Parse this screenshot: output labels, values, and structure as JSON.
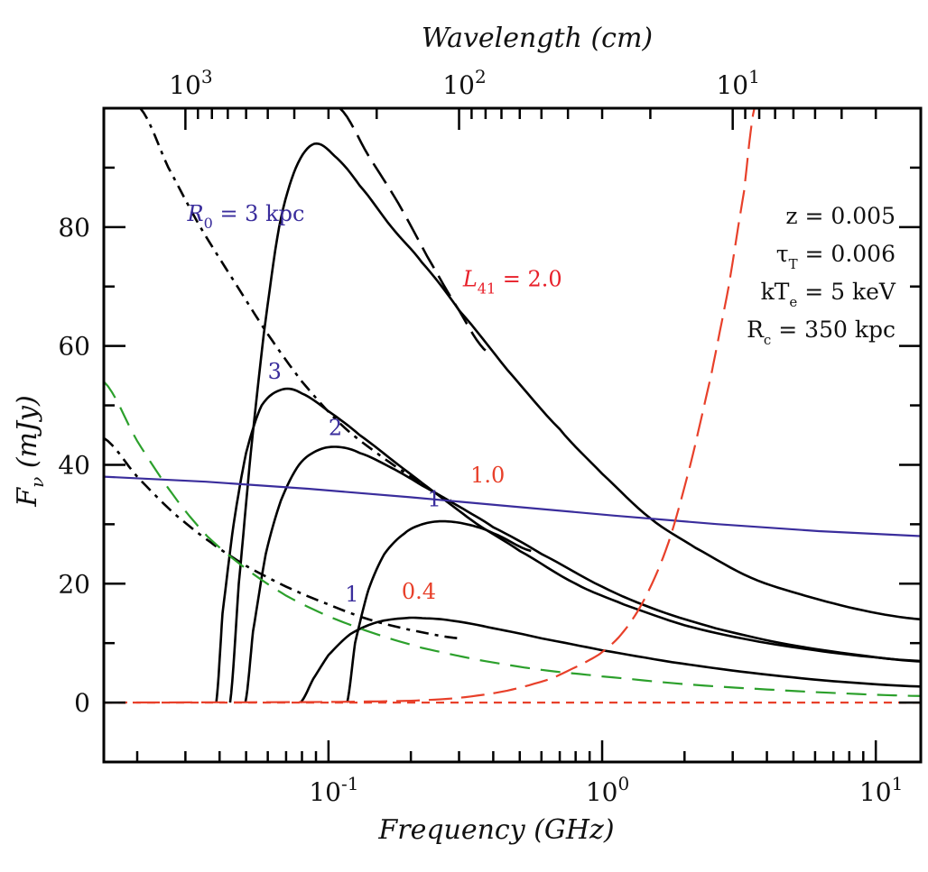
{
  "chart_data": {
    "type": "line",
    "title": "",
    "xlabel": "Frequency (GHz)",
    "ylabel": "F_ν (mJy)",
    "top_xlabel": "Wavelength (cm)",
    "xscale": "log",
    "xlim": [
      0.0151,
      14.6
    ],
    "ylim": [
      -10,
      100
    ],
    "grid": false,
    "x_ticks": [
      {
        "value": 0.1,
        "base": "10",
        "exp": "-1"
      },
      {
        "value": 1,
        "base": "10",
        "exp": "0"
      },
      {
        "value": 10,
        "base": "10",
        "exp": "1"
      }
    ],
    "top_ticks": [
      {
        "wavelength_cm": 1000,
        "base": "10",
        "exp": "3"
      },
      {
        "wavelength_cm": 100,
        "base": "10",
        "exp": "2"
      },
      {
        "wavelength_cm": 10,
        "base": "10",
        "exp": "1"
      }
    ],
    "y_ticks": [
      0,
      20,
      40,
      60,
      80
    ],
    "series": [
      {
        "name": "L41=2.0, R0=3 kpc",
        "color": "#000000",
        "style": "solid",
        "x": [
          0.0437,
          0.047,
          0.052,
          0.058,
          0.066,
          0.076,
          0.0886,
          0.105,
          0.13,
          0.17,
          0.22,
          0.3,
          0.45,
          0.7,
          1.0,
          1.5,
          2.2,
          3.5,
          5.5,
          9,
          14.6
        ],
        "y": [
          0,
          20,
          42,
          62,
          80,
          90,
          94,
          92,
          87,
          80,
          74,
          66,
          56,
          46,
          38.5,
          31,
          26,
          21,
          18,
          15.5,
          14
        ]
      },
      {
        "name": "L41=2.0 asymptote",
        "color": "#000000",
        "style": "longdash",
        "x": [
          0.11,
          0.14,
          0.18,
          0.23,
          0.3,
          0.38
        ],
        "y": [
          100,
          92,
          84,
          75,
          66,
          59
        ]
      },
      {
        "name": "L41=1.0 asymptote",
        "color": "#000000",
        "style": "dashdot",
        "x": [
          0.0205,
          0.026,
          0.034,
          0.045,
          0.06,
          0.08,
          0.11,
          0.15,
          0.2,
          0.28
        ],
        "y": [
          100,
          90,
          80,
          71,
          62,
          54,
          47,
          42,
          38,
          34
        ]
      },
      {
        "name": "L41=1.0, R0=3",
        "color": "#000000",
        "style": "solid",
        "x": [
          0.0389,
          0.041,
          0.045,
          0.05,
          0.057,
          0.068,
          0.08,
          0.1,
          0.13,
          0.18,
          0.25,
          0.35,
          0.5,
          0.8,
          1.2,
          2,
          3.5,
          6,
          10,
          14.6
        ],
        "y": [
          0,
          15,
          30,
          42,
          50,
          52.7,
          52,
          49,
          45,
          40,
          35,
          30,
          25.5,
          20,
          16.5,
          13,
          10.5,
          8.8,
          7.6,
          7
        ]
      },
      {
        "name": "L41=1.0, R0=2",
        "color": "#000000",
        "style": "solid",
        "x": [
          0.0497,
          0.053,
          0.059,
          0.067,
          0.078,
          0.092,
          0.109,
          0.13,
          0.17,
          0.22,
          0.3,
          0.4,
          0.6,
          1.0,
          1.6,
          2.6,
          4.5,
          8,
          14.6
        ],
        "y": [
          0,
          12,
          25,
          34,
          40,
          42.5,
          43,
          42,
          39.5,
          36.5,
          33,
          29.5,
          25,
          19.5,
          15.5,
          12.5,
          10,
          8.2,
          6.9
        ]
      },
      {
        "name": "L41=1.0, R0=1",
        "color": "#000000",
        "style": "solid",
        "x": [
          0.117,
          0.125,
          0.14,
          0.16,
          0.19,
          0.22,
          0.26,
          0.32,
          0.4,
          0.55
        ],
        "y": [
          0,
          10,
          19,
          25,
          28.5,
          30,
          30.5,
          30,
          28.5,
          25.5
        ]
      },
      {
        "name": "L41=0.4 asymptote",
        "color": "#000000",
        "style": "dashdot",
        "x": [
          0.0151,
          0.02,
          0.027,
          0.037,
          0.05,
          0.07,
          0.1,
          0.14,
          0.2,
          0.3
        ],
        "y": [
          44.5,
          38,
          32,
          27,
          23,
          19.5,
          16.5,
          14,
          12.2,
          10.8
        ]
      },
      {
        "name": "L41=0.4, R0=1",
        "color": "#000000",
        "style": "solid",
        "x": [
          0.079,
          0.088,
          0.1,
          0.12,
          0.15,
          0.19,
          0.22,
          0.28,
          0.4,
          0.6,
          1.0,
          1.8,
          3.5,
          7,
          14.6
        ],
        "y": [
          0,
          4,
          8,
          11.5,
          13.5,
          14.2,
          14.2,
          13.8,
          12.5,
          10.8,
          8.8,
          6.8,
          5,
          3.6,
          2.7
        ]
      },
      {
        "name": "blue reference",
        "color": "#3a2d9c",
        "style": "solid",
        "x": [
          0.0151,
          14.6
        ],
        "y": [
          38,
          28
        ]
      },
      {
        "name": "green dashed",
        "color": "#2ca02c",
        "style": "dashed",
        "x": [
          0.0151,
          0.02,
          0.027,
          0.036,
          0.05,
          0.07,
          0.1,
          0.15,
          0.22,
          0.35,
          0.6,
          1.0,
          2,
          4,
          8,
          14.6
        ],
        "y": [
          54,
          44,
          35,
          28,
          22.5,
          18,
          14.5,
          11.5,
          9.2,
          7.2,
          5.5,
          4.4,
          3.1,
          2.2,
          1.5,
          1.1
        ]
      },
      {
        "name": "red rising",
        "color": "#e8402a",
        "style": "longdash",
        "x": [
          0.0151,
          0.1,
          0.2,
          0.3,
          0.45,
          0.65,
          0.85,
          1.0,
          1.2,
          1.45,
          1.75,
          2.1,
          2.5,
          2.9,
          3.3,
          3.6
        ],
        "y": [
          0,
          0.1,
          0.3,
          0.8,
          2,
          4,
          6.5,
          8.5,
          12,
          18,
          27,
          40,
          55,
          70,
          86,
          100
        ]
      },
      {
        "name": "red zero",
        "color": "#e8402a",
        "style": "shortdash",
        "x": [
          0.0151,
          14.6
        ],
        "y": [
          0,
          0
        ]
      }
    ],
    "annotations": [
      {
        "id": "r0",
        "text": "R₀ =   3 kpc",
        "color": "#3a2d9c",
        "x": 0.0305,
        "y": 81
      },
      {
        "id": "l41",
        "text": "L₄₁ = 2.0",
        "color": "#e8202a",
        "x": 0.31,
        "y": 70
      },
      {
        "id": "l10",
        "text": "1.0",
        "color": "#e8402a",
        "x": 0.33,
        "y": 37
      },
      {
        "id": "l04",
        "text": "0.4",
        "color": "#e8402a",
        "x": 0.185,
        "y": 17.5
      },
      {
        "id": "r3",
        "text": "3",
        "color": "#3a2d9c",
        "x": 0.06,
        "y": 54.5
      },
      {
        "id": "r2",
        "text": "2",
        "color": "#3a2d9c",
        "x": 0.1,
        "y": 45
      },
      {
        "id": "r1a",
        "text": "1",
        "color": "#3a2d9c",
        "x": 0.23,
        "y": 33
      },
      {
        "id": "r1b",
        "text": "1",
        "color": "#3a2d9c",
        "x": 0.115,
        "y": 17
      }
    ],
    "params": [
      {
        "text": "z = 0.005"
      },
      {
        "text": "τ_T = 0.006"
      },
      {
        "text": "kT_e = 5 keV"
      },
      {
        "text": "R_c = 350 kpc"
      }
    ]
  }
}
